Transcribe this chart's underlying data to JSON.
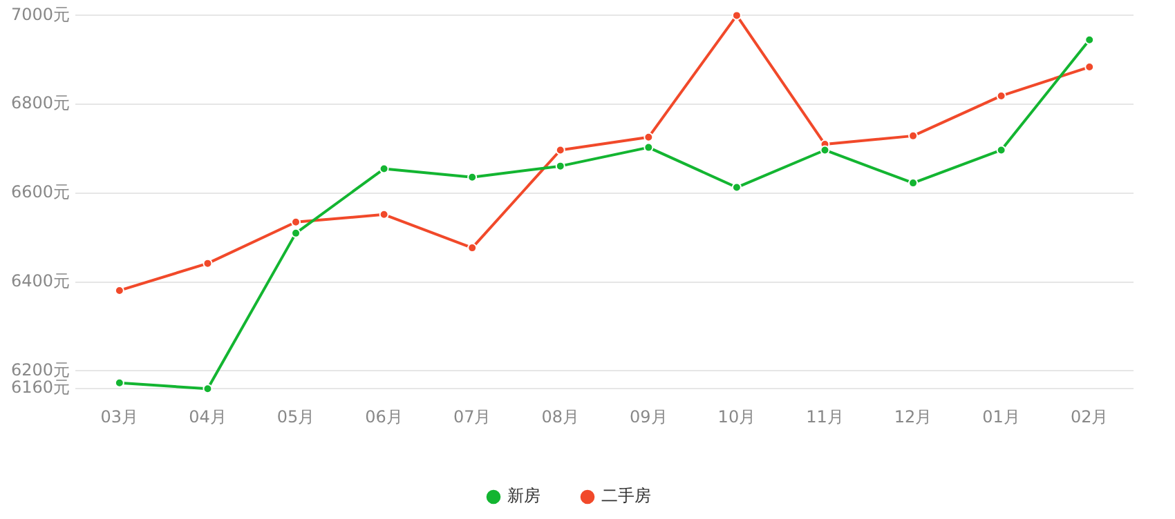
{
  "chart_data": {
    "type": "line",
    "categories": [
      "03月",
      "04月",
      "05月",
      "06月",
      "07月",
      "08月",
      "09月",
      "10月",
      "11月",
      "12月",
      "01月",
      "02月"
    ],
    "series": [
      {
        "name": "新房",
        "color": "#13b531",
        "values": [
          6173,
          6160,
          6510,
          6655,
          6636,
          6661,
          6703,
          6613,
          6697,
          6623,
          6697,
          6945
        ]
      },
      {
        "name": "二手房",
        "color": "#f1492a",
        "values": [
          6381,
          6442,
          6535,
          6552,
          6477,
          6697,
          6726,
          7000,
          6710,
          6729,
          6819,
          6884
        ]
      }
    ],
    "ylim": [
      6160,
      7000
    ],
    "yticks": [
      {
        "value": 6160,
        "label": "6160元"
      },
      {
        "value": 6200,
        "label": "6200元"
      },
      {
        "value": 6400,
        "label": "6400元"
      },
      {
        "value": 6600,
        "label": "6600元"
      },
      {
        "value": 6800,
        "label": "6800元"
      },
      {
        "value": 7000,
        "label": "7000元"
      }
    ],
    "grid": "y",
    "legend": "bottom",
    "marker": "circle",
    "line_style": "solid"
  }
}
